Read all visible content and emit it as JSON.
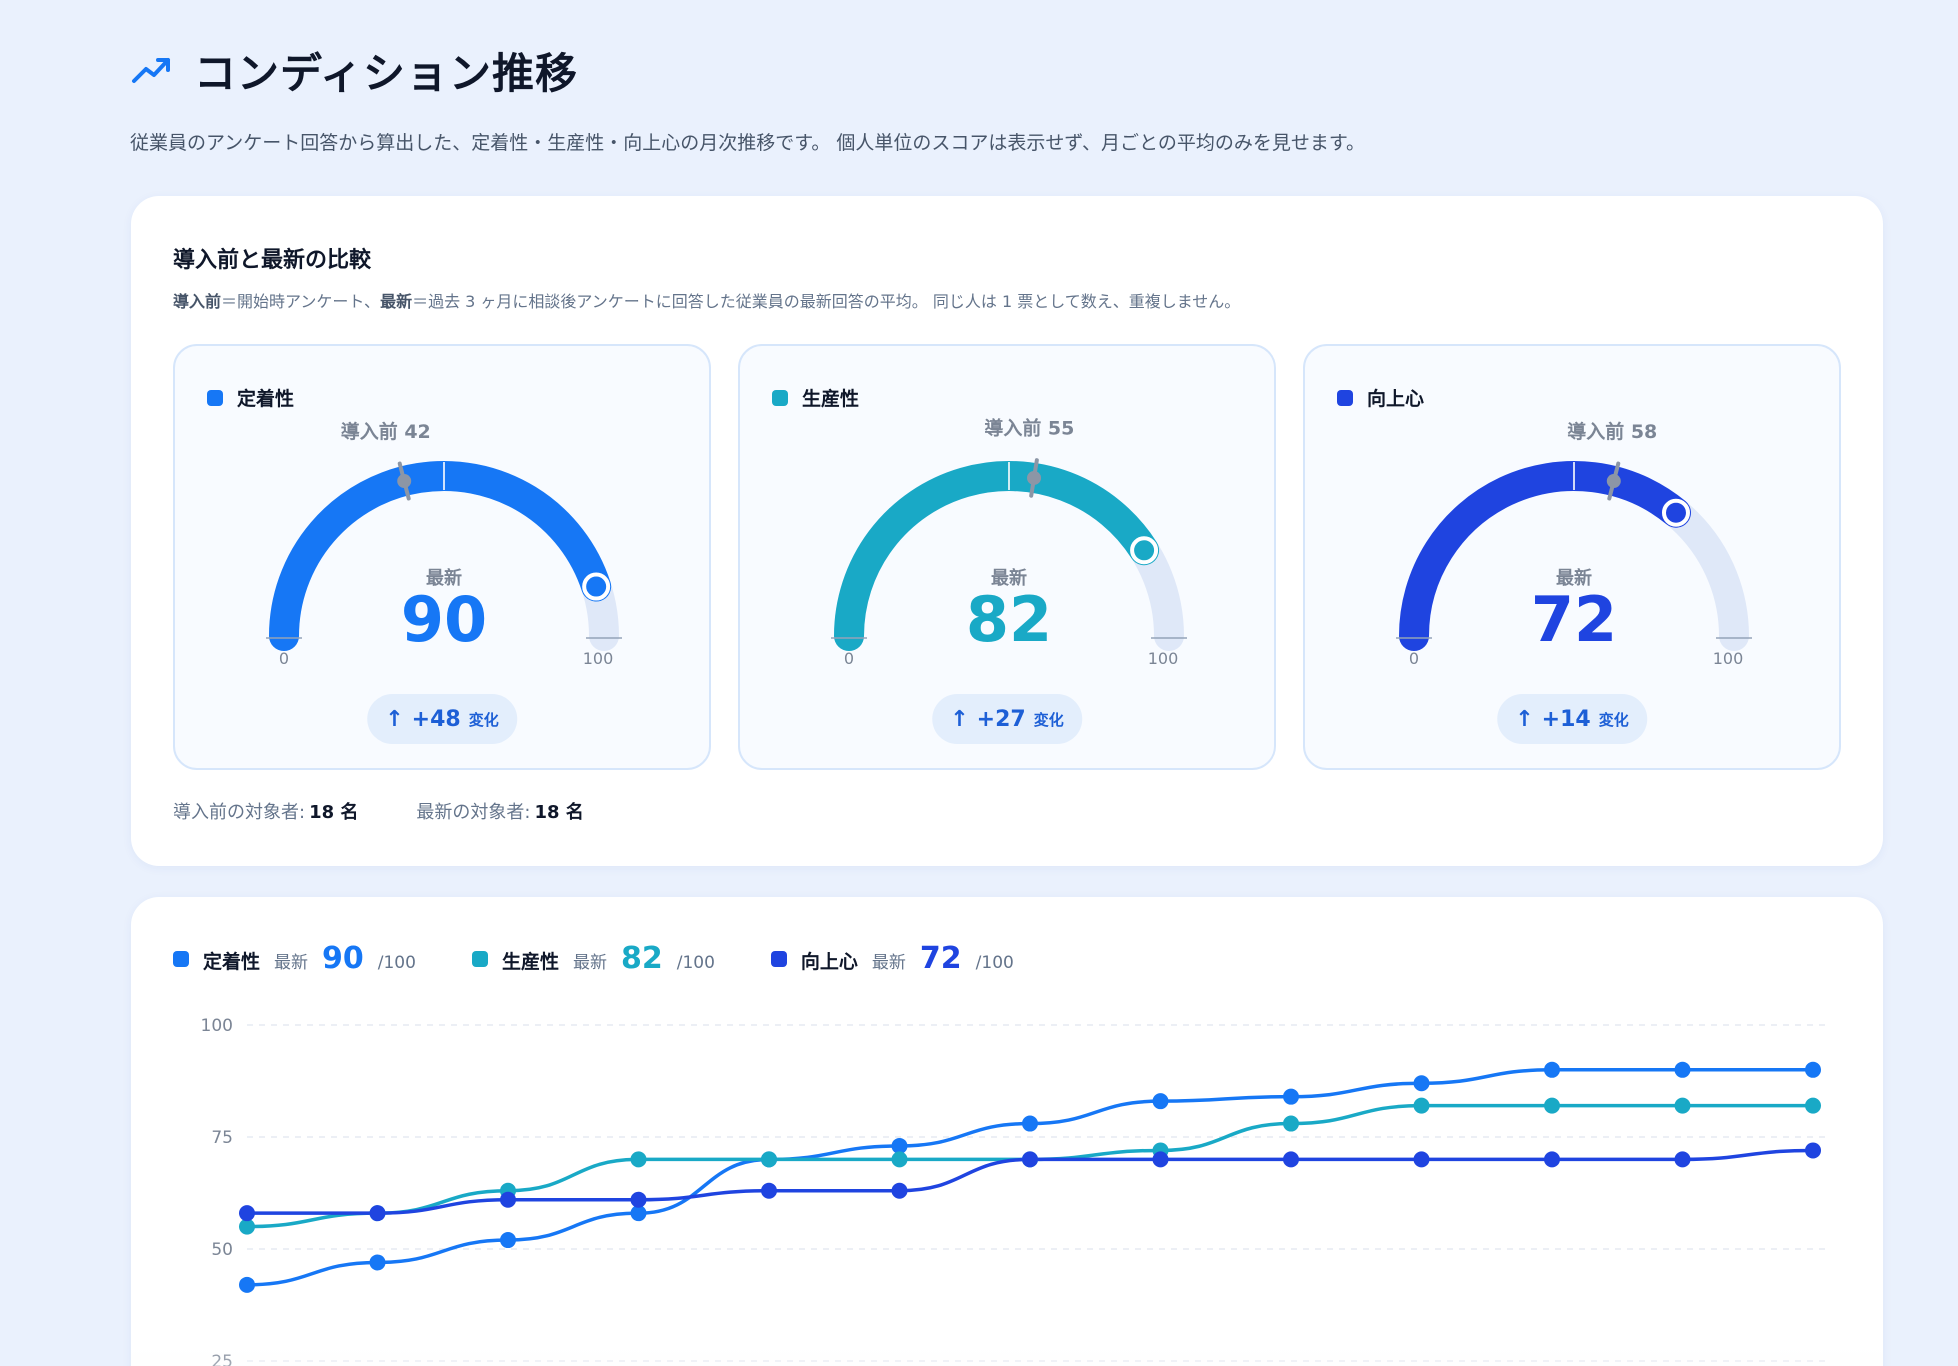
{
  "page": {
    "title": "コンディション推移",
    "description": "従業員のアンケート回答から算出した、定着性・生産性・向上心の月次推移です。 個人単位のスコアは表示せず、月ごとの平均のみを見せます。",
    "icon": "trending-up-icon"
  },
  "compare": {
    "title": "導入前と最新の比較",
    "note_before_label": "導入前",
    "note_before_text": "＝開始時アンケート、",
    "note_latest_label": "最新",
    "note_latest_text": "＝過去 3 ヶ月に相談後アンケートに回答した従業員の最新回答の平均。 同じ人は 1 票として数え、重複しません。",
    "gauges": [
      {
        "name": "定着性",
        "color": "#1677f5",
        "before_label": "導入前 42",
        "before": 42,
        "latest_label": "最新",
        "latest": 90,
        "min_label": "0",
        "max_label": "100",
        "change": "+48",
        "change_unit": "変化"
      },
      {
        "name": "生産性",
        "color": "#19a9c6",
        "before_label": "導入前 55",
        "before": 55,
        "latest_label": "最新",
        "latest": 82,
        "min_label": "0",
        "max_label": "100",
        "change": "+27",
        "change_unit": "変化"
      },
      {
        "name": "向上心",
        "color": "#1f44e0",
        "before_label": "導入前 58",
        "before": 58,
        "latest_label": "最新",
        "latest": 72,
        "min_label": "0",
        "max_label": "100",
        "change": "+14",
        "change_unit": "変化"
      }
    ],
    "counts": {
      "before_label": "導入前の対象者:",
      "before_value": "18 名",
      "latest_label": "最新の対象者:",
      "latest_value": "18 名"
    }
  },
  "chart_legend": [
    {
      "name": "定着性",
      "latest_label": "最新",
      "value": "90",
      "max": "/100",
      "color": "#1677f5"
    },
    {
      "name": "生産性",
      "latest_label": "最新",
      "value": "82",
      "max": "/100",
      "color": "#19a9c6"
    },
    {
      "name": "向上心",
      "latest_label": "最新",
      "value": "72",
      "max": "/100",
      "color": "#1f44e0"
    }
  ],
  "chart_data": {
    "type": "line",
    "ylim": [
      25,
      100
    ],
    "yticks": [
      100,
      75,
      50,
      25
    ],
    "grid": true,
    "x": [
      1,
      2,
      3,
      4,
      5,
      6,
      7,
      8,
      9,
      10,
      11,
      12,
      13
    ],
    "series": [
      {
        "name": "定着性",
        "color": "#1677f5",
        "values": [
          42,
          47,
          52,
          58,
          70,
          73,
          78,
          83,
          84,
          87,
          90,
          90,
          90
        ]
      },
      {
        "name": "生産性",
        "color": "#19a9c6",
        "values": [
          55,
          58,
          63,
          70,
          70,
          70,
          70,
          72,
          78,
          82,
          82,
          82,
          82
        ]
      },
      {
        "name": "向上心",
        "color": "#1f44e0",
        "values": [
          58,
          58,
          61,
          61,
          63,
          63,
          70,
          70,
          70,
          70,
          70,
          70,
          72
        ]
      }
    ]
  }
}
